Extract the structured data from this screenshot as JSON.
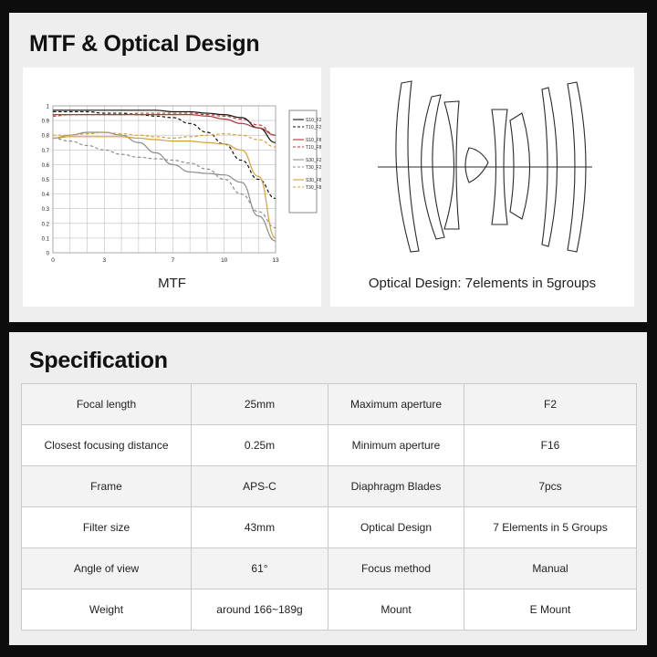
{
  "top": {
    "title": "MTF & Optical Design"
  },
  "bottom": {
    "title": "Specification"
  },
  "mtf": {
    "caption": "MTF",
    "yticks": [
      "1",
      "0.9",
      "0.8",
      "0.7",
      "0.6",
      "0.5",
      "0.4",
      "0.3",
      "0.2",
      "0.1",
      "0"
    ],
    "xticks": [
      "0",
      "3",
      "7",
      "10",
      "13"
    ]
  },
  "optics": {
    "caption": "Optical Design: 7elements in 5groups"
  },
  "colors": {
    "s10": "#111111",
    "s10_f8": "#b03a3a",
    "s30_f2": "#8c8c8c",
    "s30_f8": "#d3a132",
    "grid": "#bfbfbf",
    "lens": "#2a2a2a"
  },
  "chart_data": {
    "type": "line",
    "title": "",
    "xlabel": "",
    "ylabel": "",
    "xlim": [
      0,
      13
    ],
    "ylim": [
      0,
      1
    ],
    "grid": true,
    "legend_position": "right",
    "series": [
      {
        "name": "S10_F2",
        "dashed": false,
        "color": "#111111",
        "x": [
          0,
          1,
          2,
          3,
          4,
          5,
          6,
          7,
          8,
          9,
          10,
          11,
          12,
          13
        ],
        "y": [
          0.97,
          0.97,
          0.97,
          0.97,
          0.97,
          0.97,
          0.97,
          0.96,
          0.96,
          0.95,
          0.94,
          0.92,
          0.85,
          0.75
        ]
      },
      {
        "name": "T10_F2",
        "dashed": true,
        "color": "#111111",
        "x": [
          0,
          1,
          2,
          3,
          4,
          5,
          6,
          7,
          8,
          9,
          10,
          11,
          12,
          13
        ],
        "y": [
          0.96,
          0.96,
          0.96,
          0.95,
          0.95,
          0.94,
          0.93,
          0.92,
          0.88,
          0.82,
          0.74,
          0.63,
          0.5,
          0.37
        ]
      },
      {
        "name": "S10_F8",
        "dashed": false,
        "color": "#b03a3a",
        "x": [
          0,
          1,
          2,
          3,
          4,
          5,
          6,
          7,
          8,
          9,
          10,
          11,
          12,
          13
        ],
        "y": [
          0.94,
          0.94,
          0.94,
          0.94,
          0.94,
          0.94,
          0.94,
          0.94,
          0.94,
          0.93,
          0.91,
          0.88,
          0.85,
          0.8
        ]
      },
      {
        "name": "T10_F8",
        "dashed": true,
        "color": "#b03a3a",
        "x": [
          0,
          1,
          2,
          3,
          4,
          5,
          6,
          7,
          8,
          9,
          10,
          11,
          12,
          13
        ],
        "y": [
          0.93,
          0.94,
          0.94,
          0.94,
          0.94,
          0.95,
          0.95,
          0.95,
          0.95,
          0.94,
          0.93,
          0.91,
          0.87,
          0.8
        ]
      },
      {
        "name": "S30_F2",
        "dashed": false,
        "color": "#8c8c8c",
        "x": [
          0,
          1,
          2,
          3,
          4,
          5,
          6,
          7,
          8,
          9,
          10,
          11,
          12,
          13
        ],
        "y": [
          0.78,
          0.8,
          0.82,
          0.82,
          0.8,
          0.75,
          0.68,
          0.6,
          0.55,
          0.54,
          0.53,
          0.48,
          0.25,
          0.08
        ]
      },
      {
        "name": "T30_F2",
        "dashed": true,
        "color": "#8c8c8c",
        "x": [
          0,
          1,
          2,
          3,
          4,
          5,
          6,
          7,
          8,
          9,
          10,
          11,
          12,
          13
        ],
        "y": [
          0.78,
          0.76,
          0.73,
          0.7,
          0.67,
          0.65,
          0.64,
          0.63,
          0.61,
          0.57,
          0.5,
          0.4,
          0.28,
          0.17
        ]
      },
      {
        "name": "S30_F8",
        "dashed": false,
        "color": "#d3a132",
        "x": [
          0,
          1,
          2,
          3,
          4,
          5,
          6,
          7,
          8,
          9,
          10,
          11,
          12,
          13
        ],
        "y": [
          0.78,
          0.79,
          0.79,
          0.79,
          0.79,
          0.78,
          0.77,
          0.76,
          0.76,
          0.75,
          0.74,
          0.7,
          0.52,
          0.1
        ]
      },
      {
        "name": "T30_F8",
        "dashed": true,
        "color": "#d3a132",
        "x": [
          0,
          1,
          2,
          3,
          4,
          5,
          6,
          7,
          8,
          9,
          10,
          11,
          12,
          13
        ],
        "y": [
          0.8,
          0.8,
          0.81,
          0.82,
          0.81,
          0.8,
          0.79,
          0.78,
          0.79,
          0.8,
          0.81,
          0.8,
          0.77,
          0.72
        ]
      }
    ]
  },
  "spec": {
    "rows": [
      [
        "Focal length",
        "25mm",
        "Maximum aperture",
        "F2"
      ],
      [
        "Closest focusing distance",
        "0.25m",
        "Minimum aperture",
        "F16"
      ],
      [
        "Frame",
        "APS-C",
        "Diaphragm Blades",
        "7pcs"
      ],
      [
        "Filter size",
        "43mm",
        "Optical Design",
        "7 Elements in 5 Groups"
      ],
      [
        "Angle of view",
        "61°",
        "Focus method",
        "Manual"
      ],
      [
        "Weight",
        "around 166~189g",
        "Mount",
        "E Mount"
      ]
    ]
  }
}
